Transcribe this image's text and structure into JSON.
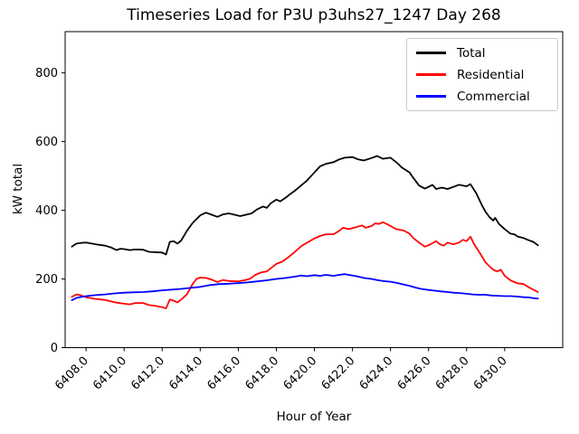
{
  "chart_data": {
    "type": "line",
    "title": "Timeseries Load for P3U p3uhs27_1247  Day 268",
    "xlabel": "Hour of Year",
    "ylabel": "kW total",
    "xlim": [
      6406.9,
      6433.05
    ],
    "ylim": [
      0,
      920
    ],
    "xticks": [
      6408,
      6410,
      6412,
      6414,
      6416,
      6418,
      6420,
      6422,
      6424,
      6426,
      6428,
      6430
    ],
    "xtick_labels": [
      "6408.0",
      "6410.0",
      "6412.0",
      "6414.0",
      "6416.0",
      "6418.0",
      "6420.0",
      "6422.0",
      "6424.0",
      "6426.0",
      "6428.0",
      "6430.0"
    ],
    "yticks": [
      0,
      200,
      400,
      600,
      800
    ],
    "grid": false,
    "legend_position": "upper right",
    "series": [
      {
        "name": "Total",
        "color": "#000000",
        "x": [
          6407.25,
          6407.5,
          6407.75,
          6408,
          6408.3,
          6408.6,
          6409,
          6409.3,
          6409.6,
          6409.8,
          6410,
          6410.3,
          6410.6,
          6411,
          6411.3,
          6411.6,
          6412,
          6412.2,
          6412.4,
          6412.6,
          6412.8,
          6413,
          6413.3,
          6413.6,
          6414,
          6414.3,
          6414.6,
          6414.9,
          6415.2,
          6415.5,
          6415.8,
          6416.1,
          6416.4,
          6416.7,
          6417,
          6417.3,
          6417.5,
          6417.7,
          6418,
          6418.2,
          6418.5,
          6418.7,
          6419,
          6419.3,
          6419.6,
          6420,
          6420.3,
          6420.6,
          6421,
          6421.3,
          6421.6,
          6422,
          6422.3,
          6422.6,
          6423,
          6423.3,
          6423.6,
          6424,
          6424.3,
          6424.6,
          6425,
          6425.2,
          6425.5,
          6425.8,
          6426,
          6426.2,
          6426.4,
          6426.7,
          6427,
          6427.3,
          6427.6,
          6428,
          6428.2,
          6428.5,
          6428.8,
          6429,
          6429.2,
          6429.4,
          6429.5,
          6429.7,
          6430,
          6430.3,
          6430.5,
          6430.7,
          6431,
          6431.2,
          6431.5,
          6431.75
        ],
        "values": [
          294,
          303,
          305,
          306,
          303,
          300,
          297,
          292,
          284,
          288,
          287,
          284,
          286,
          285,
          279,
          278,
          277,
          271,
          308,
          310,
          303,
          312,
          340,
          363,
          385,
          393,
          387,
          381,
          388,
          391,
          387,
          383,
          387,
          391,
          403,
          411,
          407,
          420,
          431,
          426,
          437,
          446,
          458,
          472,
          486,
          510,
          528,
          535,
          540,
          548,
          553,
          555,
          548,
          545,
          552,
          558,
          550,
          553,
          540,
          524,
          510,
          494,
          472,
          463,
          468,
          474,
          462,
          466,
          462,
          468,
          474,
          470,
          476,
          450,
          415,
          395,
          380,
          370,
          378,
          360,
          345,
          332,
          330,
          323,
          319,
          314,
          308,
          298
        ]
      },
      {
        "name": "Residential",
        "color": "#ff0000",
        "x": [
          6407.25,
          6407.5,
          6407.75,
          6408,
          6408.5,
          6409,
          6409.5,
          6410,
          6410.3,
          6410.6,
          6411,
          6411.3,
          6411.7,
          6412,
          6412.2,
          6412.4,
          6412.6,
          6412.8,
          6413,
          6413.3,
          6413.6,
          6413.8,
          6414,
          6414.3,
          6414.6,
          6414.9,
          6415.2,
          6415.5,
          6416,
          6416.3,
          6416.6,
          6416.9,
          6417.2,
          6417.5,
          6417.8,
          6418,
          6418.3,
          6418.6,
          6419,
          6419.3,
          6419.6,
          6420,
          6420.3,
          6420.6,
          6421,
          6421.3,
          6421.5,
          6421.8,
          6422.2,
          6422.5,
          6422.7,
          6423,
          6423.2,
          6423.4,
          6423.6,
          6423.8,
          6424,
          6424.3,
          6424.7,
          6425,
          6425.2,
          6425.5,
          6425.8,
          6426,
          6426.2,
          6426.4,
          6426.6,
          6426.8,
          6427,
          6427.3,
          6427.6,
          6427.8,
          6428,
          6428.2,
          6428.4,
          6428.7,
          6429,
          6429.2,
          6429.4,
          6429.6,
          6429.8,
          6430,
          6430.3,
          6430.5,
          6430.7,
          6431,
          6431.2,
          6431.5,
          6431.75
        ],
        "values": [
          148,
          155,
          152,
          147,
          142,
          139,
          132,
          128,
          126,
          130,
          130,
          124,
          121,
          118,
          114,
          140,
          137,
          132,
          140,
          155,
          185,
          200,
          204,
          203,
          198,
          191,
          197,
          194,
          193,
          196,
          200,
          212,
          219,
          222,
          235,
          244,
          250,
          262,
          280,
          295,
          305,
          318,
          325,
          330,
          330,
          340,
          349,
          345,
          351,
          356,
          349,
          354,
          362,
          360,
          365,
          360,
          354,
          345,
          341,
          332,
          319,
          306,
          294,
          298,
          304,
          310,
          301,
          297,
          306,
          301,
          306,
          314,
          310,
          323,
          301,
          275,
          248,
          237,
          227,
          222,
          227,
          209,
          196,
          191,
          187,
          185,
          178,
          169,
          162
        ]
      },
      {
        "name": "Commercial",
        "color": "#0000ff",
        "x": [
          6407.25,
          6407.5,
          6408,
          6408.5,
          6409,
          6409.5,
          6410,
          6410.5,
          6411,
          6411.5,
          6412,
          6412.5,
          6413,
          6413.5,
          6414,
          6414.5,
          6415,
          6415.5,
          6416,
          6416.5,
          6417,
          6417.5,
          6418,
          6418.5,
          6419,
          6419.3,
          6419.6,
          6420,
          6420.3,
          6420.6,
          6421,
          6421.3,
          6421.6,
          6422,
          6422.3,
          6422.6,
          6423,
          6423.3,
          6423.6,
          6424,
          6424.3,
          6424.6,
          6425,
          6425.3,
          6425.6,
          6426,
          6426.3,
          6426.6,
          6427,
          6427.3,
          6427.6,
          6428,
          6428.3,
          6428.6,
          6429,
          6429.3,
          6429.6,
          6430,
          6430.3,
          6430.6,
          6431,
          6431.3,
          6431.5,
          6431.75
        ],
        "values": [
          138,
          145,
          150,
          153,
          155,
          158,
          160,
          161,
          162,
          164,
          167,
          169,
          171,
          174,
          177,
          182,
          185,
          186,
          188,
          190,
          193,
          196,
          200,
          203,
          207,
          210,
          208,
          211,
          209,
          212,
          209,
          212,
          214,
          210,
          207,
          203,
          200,
          197,
          194,
          192,
          189,
          185,
          180,
          175,
          171,
          168,
          166,
          164,
          162,
          160,
          159,
          157,
          155,
          154,
          154,
          152,
          151,
          150,
          150,
          149,
          147,
          146,
          144,
          143
        ]
      }
    ]
  }
}
